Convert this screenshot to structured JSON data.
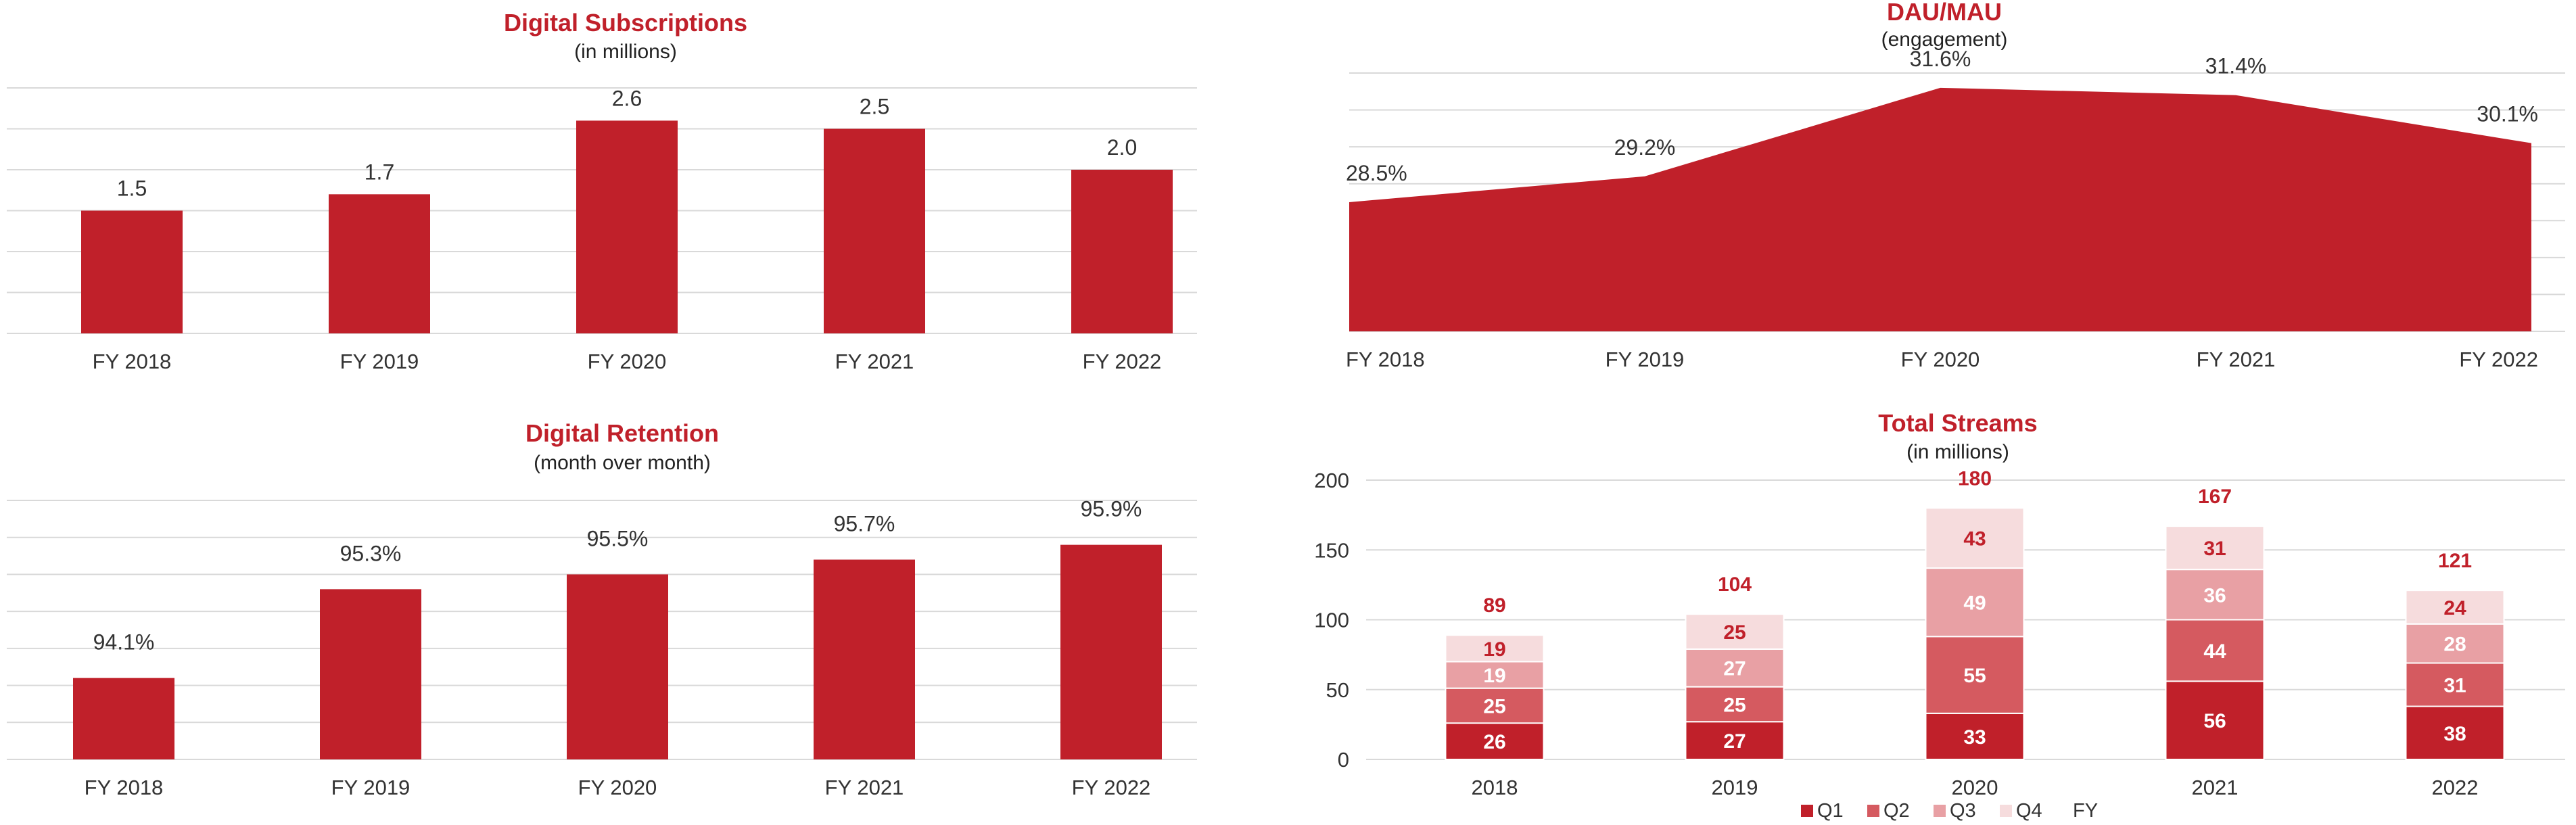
{
  "chart_data": [
    {
      "type": "bar",
      "title": "Digital Subscriptions",
      "subtitle": "(in millions)",
      "categories": [
        "FY 2018",
        "FY 2019",
        "FY 2020",
        "FY 2021",
        "FY 2022"
      ],
      "values": [
        1.5,
        1.7,
        2.6,
        2.5,
        2.0
      ],
      "labels": [
        "1.5",
        "1.7",
        "2.6",
        "2.5",
        "2.0"
      ],
      "ylim": [
        0,
        3.0
      ],
      "grid": true,
      "color": "#c0202a"
    },
    {
      "type": "area",
      "title": "DAU/MAU",
      "subtitle": "(engagement)",
      "categories": [
        "FY 2018",
        "FY 2019",
        "FY 2020",
        "FY 2021",
        "FY 2022"
      ],
      "values": [
        28.5,
        29.2,
        31.6,
        31.4,
        30.1
      ],
      "labels": [
        "28.5%",
        "29.2%",
        "31.6%",
        "31.4%",
        "30.1%"
      ],
      "ylim": [
        25.0,
        32.0
      ],
      "grid": true,
      "color": "#c0202a"
    },
    {
      "type": "bar",
      "title": "Digital Retention",
      "subtitle": "(month over month)",
      "categories": [
        "FY 2018",
        "FY 2019",
        "FY 2020",
        "FY 2021",
        "FY 2022"
      ],
      "values": [
        94.1,
        95.3,
        95.5,
        95.7,
        95.9
      ],
      "labels": [
        "94.1%",
        "95.3%",
        "95.5%",
        "95.7%",
        "95.9%"
      ],
      "ylim": [
        93.0,
        96.5
      ],
      "grid": true,
      "color": "#c0202a"
    },
    {
      "type": "bar",
      "stacked": true,
      "title": "Total Streams",
      "subtitle": "(in millions)",
      "categories": [
        "2018",
        "2019",
        "2020",
        "2021",
        "2022"
      ],
      "series": [
        {
          "name": "Q1",
          "values": [
            26,
            27,
            33,
            56,
            38
          ],
          "color": "#c0202a",
          "label_color": "#ffffff"
        },
        {
          "name": "Q2",
          "values": [
            25,
            25,
            55,
            44,
            31
          ],
          "color": "#d55a60",
          "label_color": "#ffffff"
        },
        {
          "name": "Q3",
          "values": [
            19,
            27,
            49,
            36,
            28
          ],
          "color": "#e8a0a4",
          "label_color": "#ffffff"
        },
        {
          "name": "Q4",
          "values": [
            19,
            25,
            43,
            31,
            24
          ],
          "color": "#f6dcdd",
          "label_color": "#c0202a"
        }
      ],
      "totals": [
        89,
        104,
        180,
        167,
        121
      ],
      "legend_extra": "FY",
      "yticks": [
        0,
        50,
        100,
        150,
        200
      ],
      "ylim": [
        0,
        200
      ],
      "grid": true,
      "legend": "bottom"
    }
  ]
}
